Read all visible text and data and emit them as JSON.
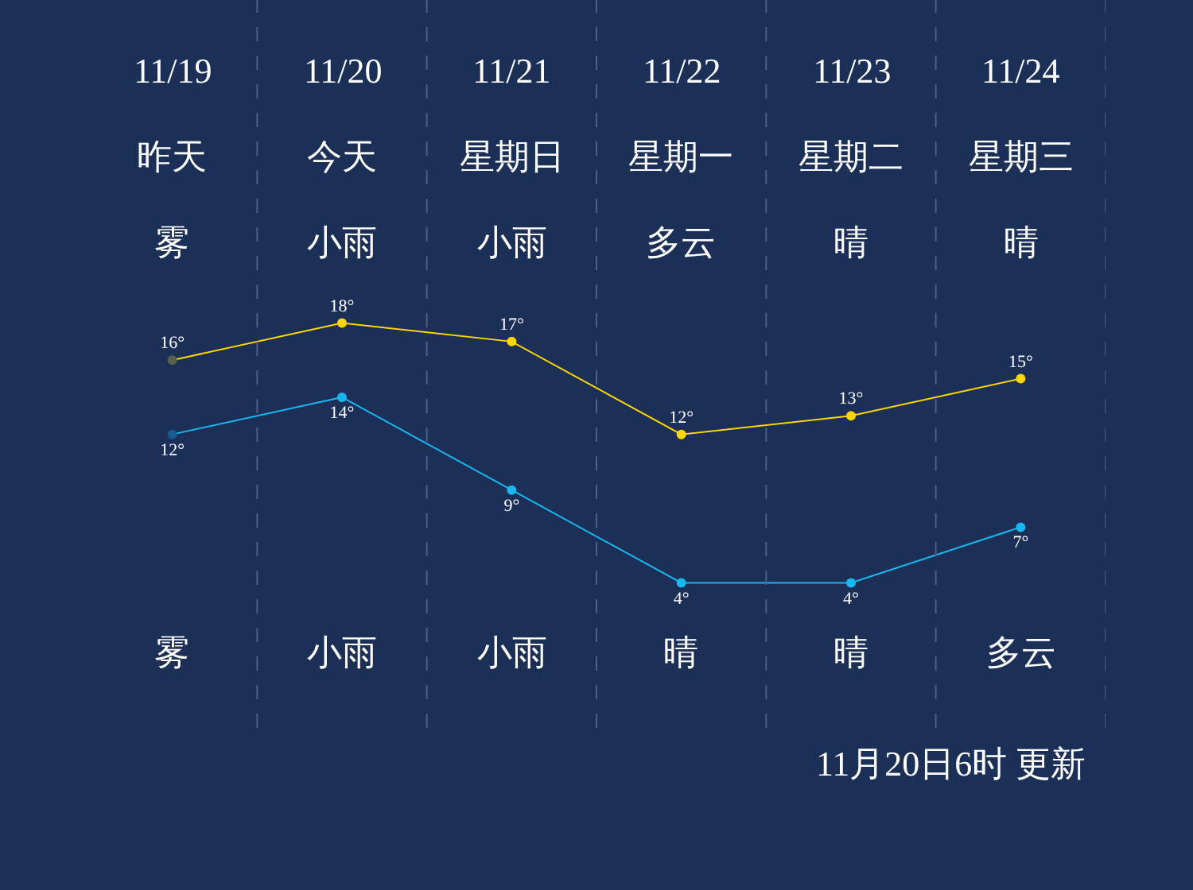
{
  "chart_data": {
    "type": "line",
    "categories": [
      "11/19",
      "11/20",
      "11/21",
      "11/22",
      "11/23",
      "11/24"
    ],
    "series": [
      {
        "color": "#ffd700",
        "colors": [
          "#5a5f4a",
          "#ffd700",
          "#ffd700",
          "#ffd700",
          "#ffd700",
          "#ffd700"
        ],
        "values": [
          16,
          18,
          17,
          12,
          13,
          15
        ],
        "value_labels": [
          "16°",
          "18°",
          "17°",
          "12°",
          "13°",
          "15°"
        ]
      },
      {
        "color": "#19b6f0",
        "colors": [
          "#1a5a90",
          "#19b6f0",
          "#19b6f0",
          "#19b6f0",
          "#19b6f0",
          "#19b6f0"
        ],
        "values": [
          12,
          14,
          9,
          4,
          4,
          7
        ],
        "value_labels": [
          "12°",
          "14°",
          "9°",
          "4°",
          "4°",
          "7°"
        ]
      }
    ],
    "annotations": [
      "昨天",
      "今天",
      "星期日",
      "星期一",
      "星期二",
      "星期三",
      "雾",
      "小雨",
      "小雨",
      "多云",
      "晴",
      "晴",
      "雾",
      "小雨",
      "小雨",
      "晴",
      "晴",
      "多云",
      "11月20日6时 更新"
    ],
    "grid": "x",
    "marker": "circle",
    "line_style": "solid"
  }
}
